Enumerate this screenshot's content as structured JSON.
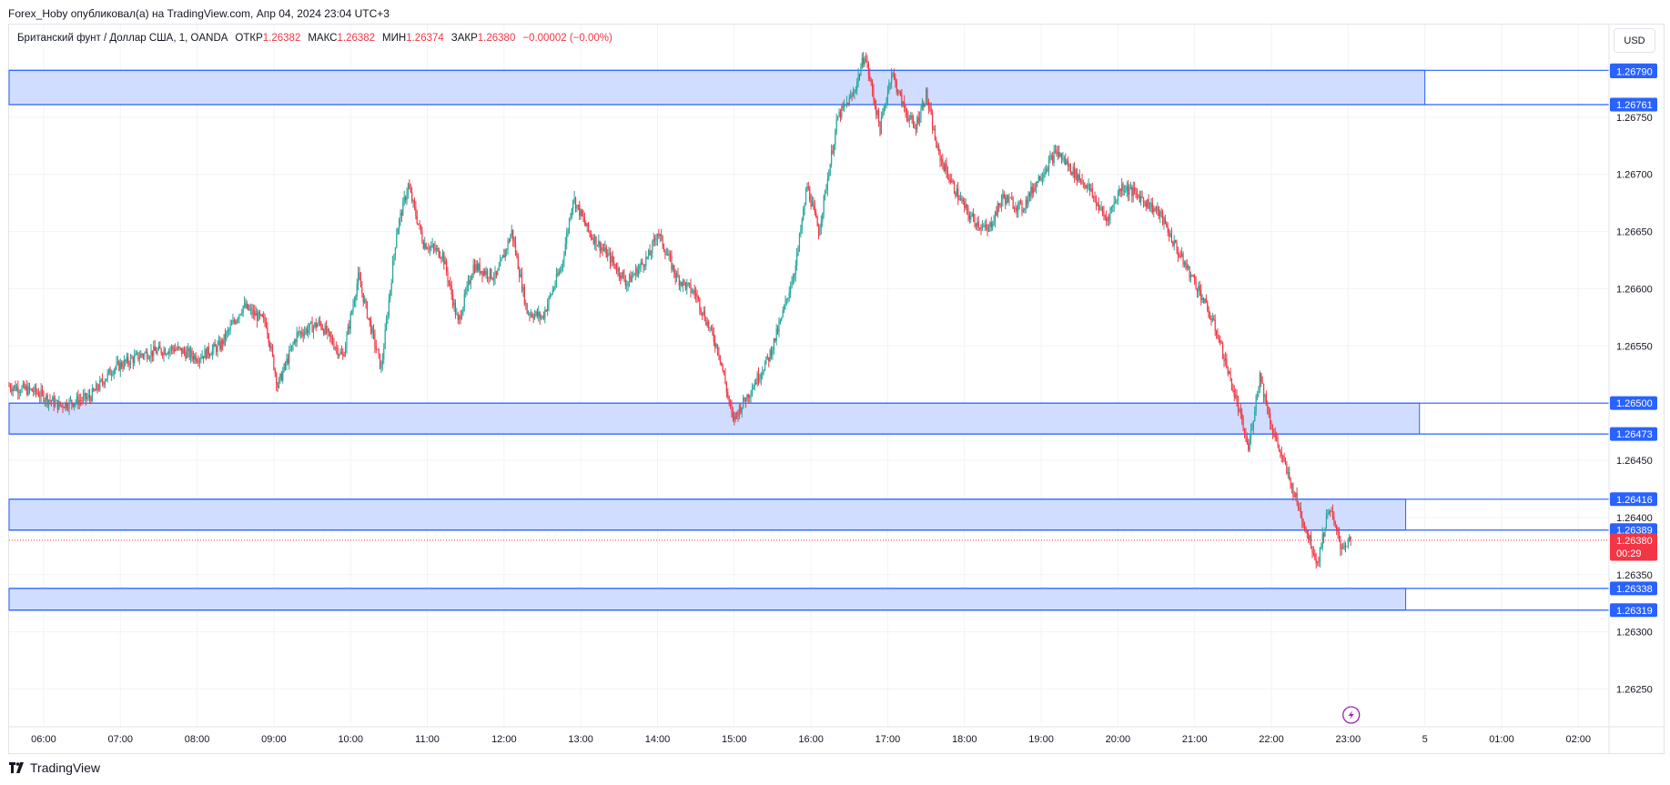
{
  "header": {
    "publisher": "Forex_Hoby опубликовал(а) на TradingView.com, Апр 04, 2024 23:04 UTC+3"
  },
  "legend": {
    "symbol": "Британский фунт / Доллар США, 1, OANDA",
    "open_label": "ОТКР",
    "open": "1.26382",
    "high_label": "МАКС",
    "high": "1.26382",
    "low_label": "МИН",
    "low": "1.26374",
    "close_label": "ЗАКР",
    "close": "1.26380",
    "change": "−0.00002 (−0.00%)"
  },
  "currency_button": "USD",
  "footer": {
    "brand": "TradingView"
  },
  "colors": {
    "up": "#26a69a",
    "down": "#f23645",
    "zone_fill": "#d1ddff",
    "zone_border": "#2962ff",
    "tag_blue": "#2962ff",
    "tag_red": "#f23645",
    "grid": "#f0f3fa"
  },
  "chart_data": {
    "type": "candlestick",
    "instrument": "GBPUSD",
    "timeframe": "1",
    "x_ticks": [
      "06:00",
      "07:00",
      "08:00",
      "09:00",
      "10:00",
      "11:00",
      "12:00",
      "13:00",
      "14:00",
      "15:00",
      "16:00",
      "17:00",
      "18:00",
      "19:00",
      "20:00",
      "21:00",
      "22:00",
      "23:00",
      "5",
      "01:00",
      "02:00"
    ],
    "y_ticks": [
      "1.26750",
      "1.26700",
      "1.26650",
      "1.26600",
      "1.26550",
      "1.26500",
      "1.26450",
      "1.26400",
      "1.26350",
      "1.26300",
      "1.26250"
    ],
    "ylim": [
      1.26217,
      1.26831
    ],
    "xlim_hours": [
      5.55,
      26.4
    ],
    "grid": true,
    "price_path": [
      {
        "t": 5.55,
        "p": 1.26515
      },
      {
        "t": 5.9,
        "p": 1.2651
      },
      {
        "t": 6.2,
        "p": 1.26498
      },
      {
        "t": 6.6,
        "p": 1.26505
      },
      {
        "t": 6.9,
        "p": 1.2653
      },
      {
        "t": 7.3,
        "p": 1.26543
      },
      {
        "t": 7.7,
        "p": 1.26548
      },
      {
        "t": 8.0,
        "p": 1.2654
      },
      {
        "t": 8.3,
        "p": 1.2655
      },
      {
        "t": 8.6,
        "p": 1.26585
      },
      {
        "t": 8.9,
        "p": 1.2657
      },
      {
        "t": 9.05,
        "p": 1.26515
      },
      {
        "t": 9.3,
        "p": 1.2656
      },
      {
        "t": 9.6,
        "p": 1.2657
      },
      {
        "t": 9.9,
        "p": 1.2654
      },
      {
        "t": 10.1,
        "p": 1.2661
      },
      {
        "t": 10.4,
        "p": 1.2653
      },
      {
        "t": 10.6,
        "p": 1.2665
      },
      {
        "t": 10.75,
        "p": 1.2669
      },
      {
        "t": 10.95,
        "p": 1.2664
      },
      {
        "t": 11.2,
        "p": 1.2663
      },
      {
        "t": 11.4,
        "p": 1.2657
      },
      {
        "t": 11.6,
        "p": 1.2662
      },
      {
        "t": 11.9,
        "p": 1.2661
      },
      {
        "t": 12.1,
        "p": 1.2665
      },
      {
        "t": 12.3,
        "p": 1.2658
      },
      {
        "t": 12.5,
        "p": 1.26575
      },
      {
        "t": 12.75,
        "p": 1.2662
      },
      {
        "t": 12.9,
        "p": 1.2668
      },
      {
        "t": 13.1,
        "p": 1.2665
      },
      {
        "t": 13.4,
        "p": 1.26625
      },
      {
        "t": 13.6,
        "p": 1.26605
      },
      {
        "t": 13.9,
        "p": 1.2663
      },
      {
        "t": 14.0,
        "p": 1.2665
      },
      {
        "t": 14.25,
        "p": 1.2661
      },
      {
        "t": 14.5,
        "p": 1.26595
      },
      {
        "t": 14.8,
        "p": 1.26545
      },
      {
        "t": 14.98,
        "p": 1.26485
      },
      {
        "t": 15.2,
        "p": 1.2651
      },
      {
        "t": 15.45,
        "p": 1.2654
      },
      {
        "t": 15.6,
        "p": 1.2657
      },
      {
        "t": 15.8,
        "p": 1.2662
      },
      {
        "t": 15.95,
        "p": 1.2669
      },
      {
        "t": 16.1,
        "p": 1.2665
      },
      {
        "t": 16.2,
        "p": 1.2669
      },
      {
        "t": 16.35,
        "p": 1.2675
      },
      {
        "t": 16.55,
        "p": 1.2677
      },
      {
        "t": 16.7,
        "p": 1.26805
      },
      {
        "t": 16.9,
        "p": 1.2674
      },
      {
        "t": 17.05,
        "p": 1.2679
      },
      {
        "t": 17.2,
        "p": 1.2676
      },
      {
        "t": 17.35,
        "p": 1.2674
      },
      {
        "t": 17.5,
        "p": 1.2677
      },
      {
        "t": 17.65,
        "p": 1.2672
      },
      {
        "t": 17.85,
        "p": 1.2669
      },
      {
        "t": 18.05,
        "p": 1.26665
      },
      {
        "t": 18.3,
        "p": 1.2665
      },
      {
        "t": 18.5,
        "p": 1.2668
      },
      {
        "t": 18.75,
        "p": 1.2667
      },
      {
        "t": 18.95,
        "p": 1.26695
      },
      {
        "t": 19.2,
        "p": 1.2672
      },
      {
        "t": 19.45,
        "p": 1.267
      },
      {
        "t": 19.6,
        "p": 1.2669
      },
      {
        "t": 19.85,
        "p": 1.2666
      },
      {
        "t": 20.05,
        "p": 1.2669
      },
      {
        "t": 20.3,
        "p": 1.2668
      },
      {
        "t": 20.55,
        "p": 1.26665
      },
      {
        "t": 20.8,
        "p": 1.2663
      },
      {
        "t": 21.05,
        "p": 1.266
      },
      {
        "t": 21.3,
        "p": 1.2656
      },
      {
        "t": 21.55,
        "p": 1.265
      },
      {
        "t": 21.7,
        "p": 1.2646
      },
      {
        "t": 21.85,
        "p": 1.26525
      },
      {
        "t": 22.0,
        "p": 1.2648
      },
      {
        "t": 22.2,
        "p": 1.2644
      },
      {
        "t": 22.4,
        "p": 1.264
      },
      {
        "t": 22.6,
        "p": 1.2636
      },
      {
        "t": 22.75,
        "p": 1.2641
      },
      {
        "t": 22.9,
        "p": 1.26375
      },
      {
        "t": 23.04,
        "p": 1.2638
      }
    ],
    "zones": [
      {
        "top": 1.26791,
        "bottom": 1.26761,
        "top_label": "1.26791",
        "bottom_label": "1.26761",
        "end_x": 24.0
      },
      {
        "top": 1.265,
        "bottom": 1.26473,
        "top_label": "1.26500",
        "bottom_label": "1.26473",
        "end_x": 23.93
      },
      {
        "top": 1.26416,
        "bottom": 1.26389,
        "top_label": "1.26416",
        "bottom_label": "1.26389",
        "end_x": 23.75
      },
      {
        "top": 1.26338,
        "bottom": 1.26319,
        "top_label": "1.26338",
        "bottom_label": "1.26319",
        "end_x": 23.75
      }
    ],
    "extra_price_tags": [
      {
        "price": 1.2679,
        "label": "1.26790"
      },
      {
        "price": 1.26761,
        "label": "1.26761"
      }
    ],
    "current_price": {
      "price": 1.2638,
      "label": "1.26380",
      "countdown": "00:29"
    }
  }
}
